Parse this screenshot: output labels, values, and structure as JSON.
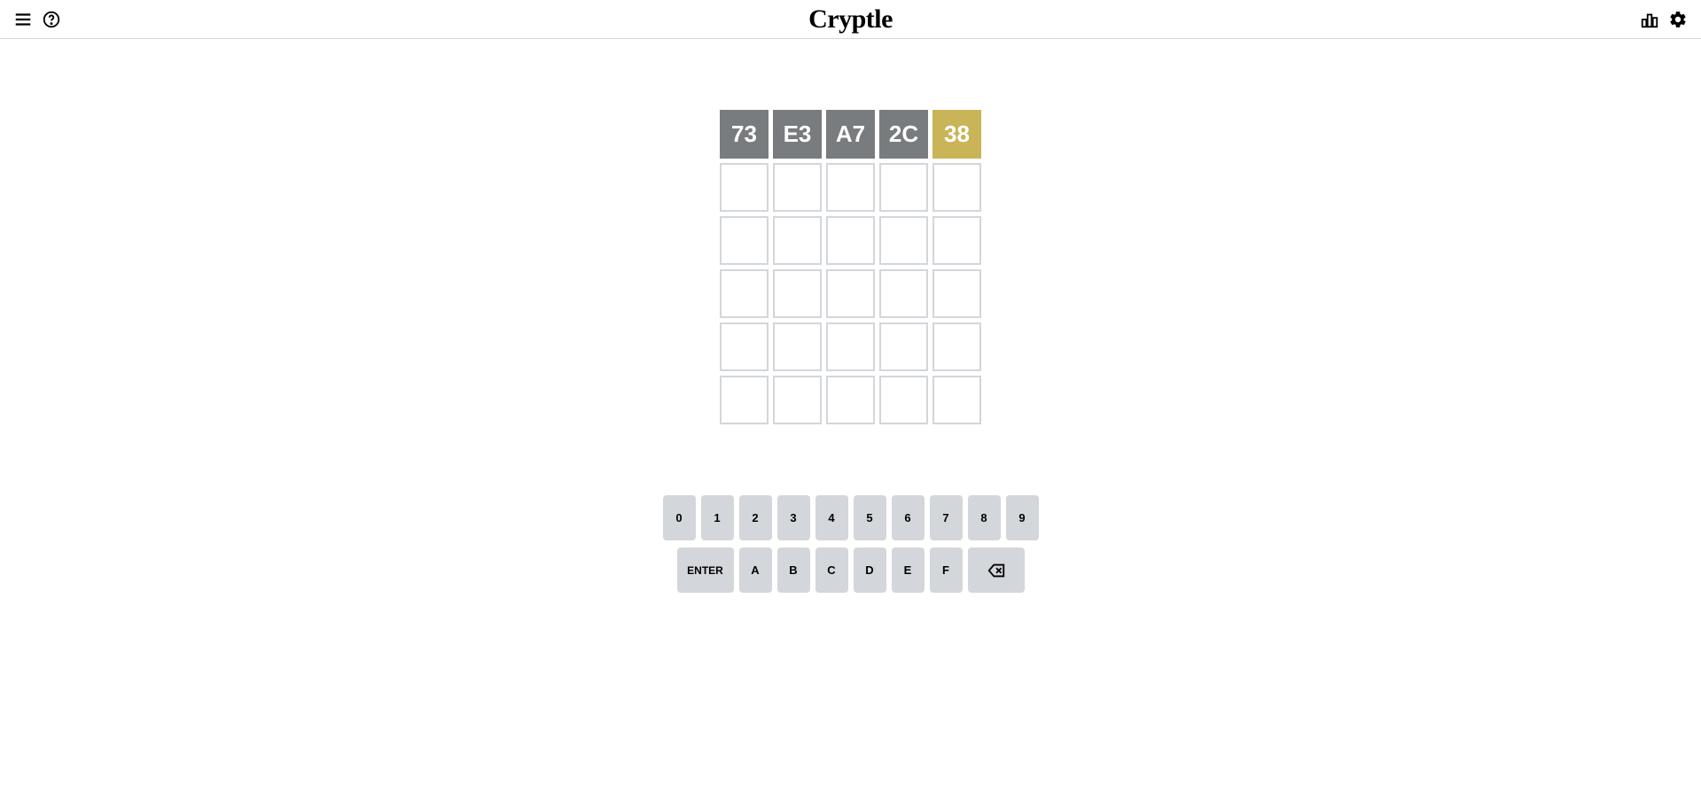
{
  "header": {
    "title": "Cryptle"
  },
  "board": {
    "rows": 6,
    "cols": 5,
    "tiles": [
      [
        {
          "value": "73",
          "state": "absent"
        },
        {
          "value": "E3",
          "state": "absent"
        },
        {
          "value": "A7",
          "state": "absent"
        },
        {
          "value": "2C",
          "state": "absent"
        },
        {
          "value": "38",
          "state": "present"
        }
      ],
      [
        {
          "value": "",
          "state": "empty"
        },
        {
          "value": "",
          "state": "empty"
        },
        {
          "value": "",
          "state": "empty"
        },
        {
          "value": "",
          "state": "empty"
        },
        {
          "value": "",
          "state": "empty"
        }
      ],
      [
        {
          "value": "",
          "state": "empty"
        },
        {
          "value": "",
          "state": "empty"
        },
        {
          "value": "",
          "state": "empty"
        },
        {
          "value": "",
          "state": "empty"
        },
        {
          "value": "",
          "state": "empty"
        }
      ],
      [
        {
          "value": "",
          "state": "empty"
        },
        {
          "value": "",
          "state": "empty"
        },
        {
          "value": "",
          "state": "empty"
        },
        {
          "value": "",
          "state": "empty"
        },
        {
          "value": "",
          "state": "empty"
        }
      ],
      [
        {
          "value": "",
          "state": "empty"
        },
        {
          "value": "",
          "state": "empty"
        },
        {
          "value": "",
          "state": "empty"
        },
        {
          "value": "",
          "state": "empty"
        },
        {
          "value": "",
          "state": "empty"
        }
      ],
      [
        {
          "value": "",
          "state": "empty"
        },
        {
          "value": "",
          "state": "empty"
        },
        {
          "value": "",
          "state": "empty"
        },
        {
          "value": "",
          "state": "empty"
        },
        {
          "value": "",
          "state": "empty"
        }
      ]
    ]
  },
  "keyboard": {
    "row1": [
      "0",
      "1",
      "2",
      "3",
      "4",
      "5",
      "6",
      "7",
      "8",
      "9"
    ],
    "row2_enter": "ENTER",
    "row2_keys": [
      "A",
      "B",
      "C",
      "D",
      "E",
      "F"
    ]
  },
  "colors": {
    "absent": "#787c7e",
    "present": "#c9b458",
    "correct": "#6aaa64",
    "key_bg": "#d3d6da",
    "border": "#d3d6da"
  }
}
